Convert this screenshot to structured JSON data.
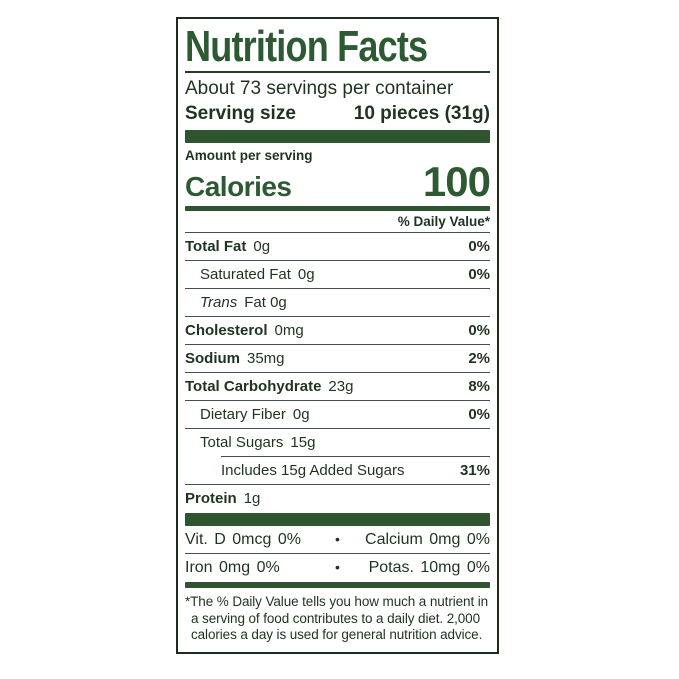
{
  "colors": {
    "accent_green": "#2d5a33",
    "bar_green": "#2f5530",
    "ink": "#1f3321",
    "hairline": "#45524a"
  },
  "label": {
    "title": "Nutrition Facts",
    "servings_per_container": "About 73 servings per container",
    "serving_size_label": "Serving size",
    "serving_size_value": "10 pieces (31g)",
    "amount_per_serving": "Amount per serving",
    "calories_label": "Calories",
    "calories_value": "100",
    "daily_value_header": "% Daily Value*",
    "rows": [
      {
        "name": "Total Fat",
        "amount": "0g",
        "dv": "0%"
      },
      {
        "name": "Saturated Fat",
        "amount": "0g",
        "dv": "0%"
      },
      {
        "name": "Trans",
        "amount": "Fat  0g",
        "dv": ""
      },
      {
        "name": "Cholesterol",
        "amount": "0mg",
        "dv": "0%"
      },
      {
        "name": "Sodium",
        "amount": "35mg",
        "dv": "2%"
      },
      {
        "name": "Total Carbohydrate",
        "amount": "23g",
        "dv": "8%"
      },
      {
        "name": "Dietary Fiber",
        "amount": "0g",
        "dv": "0%"
      },
      {
        "name": "Total Sugars",
        "amount": "15g",
        "dv": ""
      },
      {
        "name": "Includes 15g Added Sugars",
        "amount": "",
        "dv": "31%"
      },
      {
        "name": "Protein",
        "amount": "1g",
        "dv": ""
      }
    ],
    "micronutrients": [
      {
        "left": "Vit. D  0mcg  0%",
        "bullet": "•",
        "right": "Calcium  0mg  0%"
      },
      {
        "left": "Iron  0mg  0%",
        "bullet": "•",
        "right": "Potas. 10mg  0%"
      }
    ],
    "footnote": "*The % Daily Value tells you how much a nutrient in a serving of food contributes to a daily diet. 2,000 calories a day is used for general nutrition advice."
  }
}
